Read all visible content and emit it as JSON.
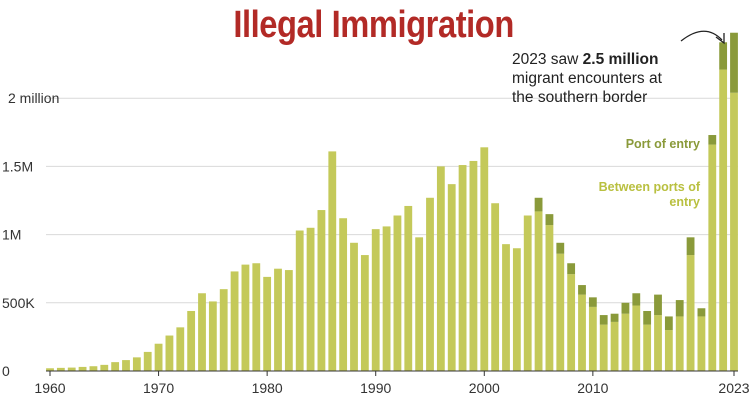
{
  "title": "Illegal Immigration",
  "annotation": {
    "prefix": "2023 saw ",
    "highlight": "2.5 million",
    "line2": "migrant encounters at",
    "line3": "the southern border"
  },
  "colors": {
    "port_of_entry": "#8a9a3a",
    "between_ports": "#c4c95a",
    "title": "#b22a26"
  },
  "chart_data": {
    "type": "bar",
    "stacked": true,
    "xlabel": "",
    "ylabel": "",
    "x_ticks": [
      "1960",
      "1970",
      "1980",
      "1990",
      "2000",
      "2010",
      "2023"
    ],
    "x_tick_values": [
      1960,
      1970,
      1980,
      1990,
      2000,
      2010,
      2023
    ],
    "y_ticks": [
      {
        "value": 0,
        "label": "0"
      },
      {
        "value": 500000,
        "label": "500K"
      },
      {
        "value": 1000000,
        "label": "1M"
      },
      {
        "value": 1500000,
        "label": "1.5M"
      },
      {
        "value": 2000000,
        "label": "2 million"
      }
    ],
    "ylim": [
      0,
      2500000
    ],
    "years": [
      1960,
      1961,
      1962,
      1963,
      1964,
      1965,
      1966,
      1967,
      1968,
      1969,
      1970,
      1971,
      1972,
      1973,
      1974,
      1975,
      1976,
      1977,
      1978,
      1979,
      1980,
      1981,
      1982,
      1983,
      1984,
      1985,
      1986,
      1987,
      1988,
      1989,
      1990,
      1991,
      1992,
      1993,
      1994,
      1995,
      1996,
      1997,
      1998,
      1999,
      2000,
      2001,
      2002,
      2003,
      2004,
      2005,
      2006,
      2007,
      2008,
      2009,
      2010,
      2011,
      2012,
      2013,
      2014,
      2015,
      2016,
      2017,
      2018,
      2019,
      2020,
      2021,
      2022,
      2023
    ],
    "series": [
      {
        "name": "Between ports of entry",
        "values": [
          20000,
          23000,
          25000,
          30000,
          35000,
          45000,
          65000,
          80000,
          100000,
          140000,
          200000,
          260000,
          320000,
          440000,
          570000,
          510000,
          600000,
          730000,
          780000,
          790000,
          690000,
          750000,
          740000,
          1030000,
          1050000,
          1180000,
          1610000,
          1120000,
          940000,
          850000,
          1040000,
          1060000,
          1140000,
          1210000,
          980000,
          1270000,
          1500000,
          1370000,
          1510000,
          1540000,
          1640000,
          1230000,
          930000,
          900000,
          1140000,
          1170000,
          1070000,
          860000,
          710000,
          560000,
          470000,
          340000,
          360000,
          420000,
          480000,
          340000,
          410000,
          300000,
          400000,
          850000,
          400000,
          1660000,
          2210000,
          2040000
        ]
      },
      {
        "name": "Port of entry",
        "values": [
          0,
          0,
          0,
          0,
          0,
          0,
          0,
          0,
          0,
          0,
          0,
          0,
          0,
          0,
          0,
          0,
          0,
          0,
          0,
          0,
          0,
          0,
          0,
          0,
          0,
          0,
          0,
          0,
          0,
          0,
          0,
          0,
          0,
          0,
          0,
          0,
          0,
          0,
          0,
          0,
          0,
          0,
          0,
          0,
          0,
          100000,
          80000,
          80000,
          80000,
          70000,
          70000,
          70000,
          60000,
          80000,
          90000,
          100000,
          150000,
          100000,
          120000,
          130000,
          60000,
          70000,
          200000,
          440000
        ]
      }
    ],
    "legend": [
      "Port of entry",
      "Between ports of entry"
    ],
    "legend_placement": "right, inside plot"
  }
}
